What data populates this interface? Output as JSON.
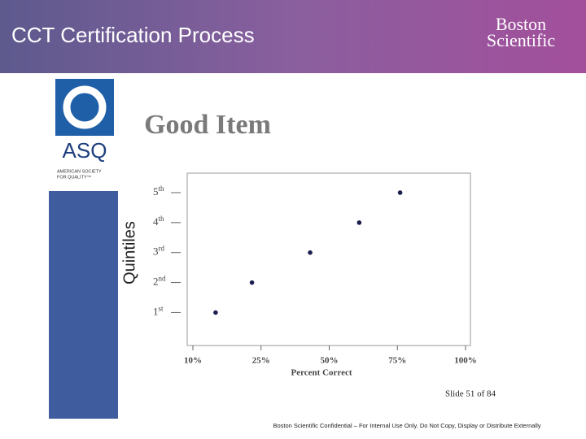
{
  "slide": {
    "title": "CCT Certification Process",
    "logo": {
      "line1": "Boston",
      "line2": "Scientific"
    },
    "asq": {
      "mark": "ASQ",
      "line1": "AMERICAN SOCIETY",
      "line2": "FOR QUALITY™"
    },
    "slide_number": "Slide 51 of 84",
    "footer": "Boston Scientific Confidential – For Internal Use Only.  Do Not Copy, Display or Distribute Externally"
  },
  "chart_data": {
    "type": "scatter",
    "title": "Good Item",
    "x_label": "Percent Correct",
    "y_label": "Quintiles",
    "x": [
      15,
      23,
      43,
      61,
      76
    ],
    "values": [
      1,
      2,
      3,
      4,
      5
    ],
    "color": "#1b1f4f",
    "xlim": [
      10,
      100
    ],
    "xticks": [
      {
        "value": 10,
        "label": "10%"
      },
      {
        "value": 25,
        "label": "25%"
      },
      {
        "value": 50,
        "label": "50%"
      },
      {
        "value": 75,
        "label": "75%"
      },
      {
        "value": 100,
        "label": "100%"
      }
    ],
    "ylim": [
      -0.1,
      5.65
    ],
    "yticks": [
      {
        "value": 1,
        "label": "1st"
      },
      {
        "value": 2,
        "label": "2nd"
      },
      {
        "value": 3,
        "label": "3rd"
      },
      {
        "value": 4,
        "label": "4th"
      },
      {
        "value": 5,
        "label": "5th"
      }
    ]
  }
}
